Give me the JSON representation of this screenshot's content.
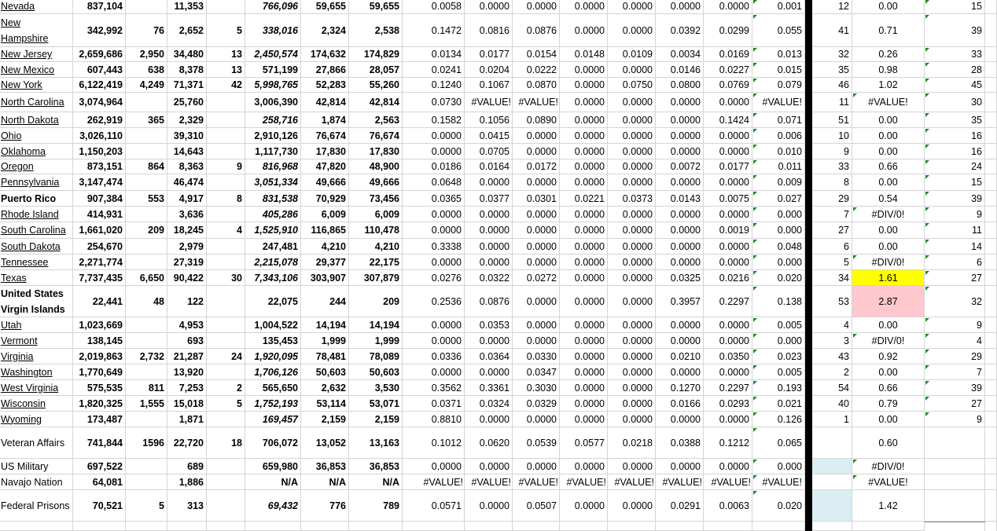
{
  "colors": {
    "highlight_yellow": "#ffff00",
    "highlight_pink": "#ffc7ce",
    "highlight_blue": "#daeef3",
    "error_indicator": "#1e8a1e"
  },
  "rows": [
    {
      "name": "Nevada",
      "style": "link",
      "f_italic": true,
      "nums": [
        "837,104",
        "",
        "11,353",
        "",
        "766,096",
        "59,655",
        "59,655"
      ],
      "ratios": [
        "0.0058",
        "0.0000",
        "0.0000",
        "0.0000",
        "0.0000",
        "0.0000",
        "0.0000",
        "0.001"
      ],
      "q": "12",
      "r": "0.00",
      "s": "15"
    },
    {
      "name": "New Hampshire",
      "style": "link",
      "f_italic": true,
      "nums": [
        "342,992",
        "76",
        "2,652",
        "5",
        "338,016",
        "2,324",
        "2,538"
      ],
      "ratios": [
        "0.1472",
        "0.0816",
        "0.0876",
        "0.0000",
        "0.0000",
        "0.0392",
        "0.0299",
        "0.055"
      ],
      "q": "41",
      "r": "0.71",
      "s": "39"
    },
    {
      "name": "New Jersey",
      "style": "link",
      "f_italic": true,
      "nums": [
        "2,659,686",
        "2,950",
        "34,480",
        "13",
        "2,450,574",
        "174,632",
        "174,829"
      ],
      "ratios": [
        "0.0134",
        "0.0177",
        "0.0154",
        "0.0148",
        "0.0109",
        "0.0034",
        "0.0169",
        "0.013"
      ],
      "q": "32",
      "r": "0.26",
      "s": "33"
    },
    {
      "name": "New Mexico",
      "style": "link",
      "f_italic": false,
      "nums": [
        "607,443",
        "638",
        "8,378",
        "13",
        "571,199",
        "27,866",
        "28,057"
      ],
      "ratios": [
        "0.0241",
        "0.0204",
        "0.0222",
        "0.0000",
        "0.0000",
        "0.0146",
        "0.0227",
        "0.015"
      ],
      "q": "35",
      "r": "0.98",
      "s": "28"
    },
    {
      "name": "New York",
      "style": "link",
      "f_italic": true,
      "nums": [
        "6,122,419",
        "4,249",
        "71,371",
        "42",
        "5,998,765",
        "52,283",
        "55,260"
      ],
      "ratios": [
        "0.1240",
        "0.1067",
        "0.0870",
        "0.0000",
        "0.0750",
        "0.0800",
        "0.0769",
        "0.079"
      ],
      "q": "46",
      "r": "1.02",
      "s": "45"
    },
    {
      "name": "North Carolina",
      "style": "link",
      "f_italic": false,
      "nums": [
        "3,074,964",
        "",
        "25,760",
        "",
        "3,006,390",
        "42,814",
        "42,814"
      ],
      "ratios": [
        "0.0730",
        "#VALUE!",
        "#VALUE!",
        "0.0000",
        "0.0000",
        "0.0000",
        "0.0000",
        "#VALUE!"
      ],
      "q": "11",
      "r": "#VALUE!",
      "s": "30",
      "r_flag": true
    },
    {
      "name": "North Dakota",
      "style": "link",
      "f_italic": true,
      "nums": [
        "262,919",
        "365",
        "2,329",
        "",
        "258,716",
        "1,874",
        "2,563"
      ],
      "ratios": [
        "0.1582",
        "0.1056",
        "0.0890",
        "0.0000",
        "0.0000",
        "0.0000",
        "0.1424",
        "0.071"
      ],
      "q": "51",
      "r": "0.00",
      "s": "35"
    },
    {
      "name": "Ohio",
      "style": "link",
      "f_italic": false,
      "nums": [
        "3,026,110",
        "",
        "39,310",
        "",
        "2,910,126",
        "76,674",
        "76,674"
      ],
      "ratios": [
        "0.0000",
        "0.0415",
        "0.0000",
        "0.0000",
        "0.0000",
        "0.0000",
        "0.0000",
        "0.006"
      ],
      "q": "10",
      "r": "0.00",
      "s": "16"
    },
    {
      "name": "Oklahoma",
      "style": "link",
      "f_italic": false,
      "nums": [
        "1,150,203",
        "",
        "14,643",
        "",
        "1,117,730",
        "17,830",
        "17,830"
      ],
      "ratios": [
        "0.0000",
        "0.0705",
        "0.0000",
        "0.0000",
        "0.0000",
        "0.0000",
        "0.0000",
        "0.010"
      ],
      "q": "9",
      "r": "0.00",
      "s": "16"
    },
    {
      "name": "Oregon",
      "style": "link",
      "f_italic": true,
      "nums": [
        "873,151",
        "864",
        "8,363",
        "9",
        "816,968",
        "47,820",
        "48,900"
      ],
      "ratios": [
        "0.0186",
        "0.0164",
        "0.0172",
        "0.0000",
        "0.0000",
        "0.0072",
        "0.0177",
        "0.011"
      ],
      "q": "33",
      "r": "0.66",
      "s": "24"
    },
    {
      "name": "Pennsylvania",
      "style": "link",
      "f_italic": true,
      "nums": [
        "3,147,474",
        "",
        "46,474",
        "",
        "3,051,334",
        "49,666",
        "49,666"
      ],
      "ratios": [
        "0.0648",
        "0.0000",
        "0.0000",
        "0.0000",
        "0.0000",
        "0.0000",
        "0.0000",
        "0.009"
      ],
      "q": "8",
      "r": "0.00",
      "s": "15"
    },
    {
      "name": "Puerto Rico",
      "style": "bold",
      "f_italic": true,
      "nums": [
        "907,384",
        "553",
        "4,917",
        "8",
        "831,538",
        "70,929",
        "73,456"
      ],
      "ratios": [
        "0.0365",
        "0.0377",
        "0.0301",
        "0.0221",
        "0.0373",
        "0.0143",
        "0.0075",
        "0.027"
      ],
      "q": "29",
      "r": "0.54",
      "s": "39"
    },
    {
      "name": "Rhode Island",
      "style": "link",
      "f_italic": true,
      "nums": [
        "414,931",
        "",
        "3,636",
        "",
        "405,286",
        "6,009",
        "6,009"
      ],
      "ratios": [
        "0.0000",
        "0.0000",
        "0.0000",
        "0.0000",
        "0.0000",
        "0.0000",
        "0.0000",
        "0.000"
      ],
      "q": "7",
      "r": "#DIV/0!",
      "s": "9",
      "r_flag": true
    },
    {
      "name": "South Carolina",
      "style": "link",
      "f_italic": true,
      "nums": [
        "1,661,020",
        "209",
        "18,245",
        "4",
        "1,525,910",
        "116,865",
        "110,478"
      ],
      "ratios": [
        "0.0000",
        "0.0000",
        "0.0000",
        "0.0000",
        "0.0000",
        "0.0000",
        "0.0019",
        "0.000"
      ],
      "q": "27",
      "r": "0.00",
      "s": "11"
    },
    {
      "name": "South Dakota",
      "style": "link",
      "f_italic": false,
      "nums": [
        "254,670",
        "",
        "2,979",
        "",
        "247,481",
        "4,210",
        "4,210"
      ],
      "ratios": [
        "0.3338",
        "0.0000",
        "0.0000",
        "0.0000",
        "0.0000",
        "0.0000",
        "0.0000",
        "0.048"
      ],
      "q": "6",
      "r": "0.00",
      "s": "14"
    },
    {
      "name": "Tennessee",
      "style": "link",
      "f_italic": true,
      "nums": [
        "2,271,774",
        "",
        "27,319",
        "",
        "2,215,078",
        "29,377",
        "22,175"
      ],
      "ratios": [
        "0.0000",
        "0.0000",
        "0.0000",
        "0.0000",
        "0.0000",
        "0.0000",
        "0.0000",
        "0.000"
      ],
      "q": "5",
      "r": "#DIV/0!",
      "s": "6",
      "r_flag": true
    },
    {
      "name": "Texas",
      "style": "link",
      "f_italic": true,
      "nums": [
        "7,737,435",
        "6,650",
        "90,422",
        "30",
        "7,343,106",
        "303,907",
        "307,879"
      ],
      "ratios": [
        "0.0276",
        "0.0322",
        "0.0272",
        "0.0000",
        "0.0000",
        "0.0325",
        "0.0216",
        "0.020"
      ],
      "q": "34",
      "r": "1.61",
      "s": "27",
      "r_fill": "#ffff00"
    },
    {
      "name": "United States Virgin Islands",
      "style": "bold",
      "f_italic": false,
      "nums": [
        "22,441",
        "48",
        "122",
        "",
        "22,075",
        "244",
        "209"
      ],
      "ratios": [
        "0.2536",
        "0.0876",
        "0.0000",
        "0.0000",
        "0.0000",
        "0.3957",
        "0.2297",
        "0.138"
      ],
      "q": "53",
      "r": "2.87",
      "s": "32",
      "r_fill": "#ffc7ce"
    },
    {
      "name": "Utah",
      "style": "link",
      "f_italic": false,
      "nums": [
        "1,023,669",
        "",
        "4,953",
        "",
        "1,004,522",
        "14,194",
        "14,194"
      ],
      "ratios": [
        "0.0000",
        "0.0353",
        "0.0000",
        "0.0000",
        "0.0000",
        "0.0000",
        "0.0000",
        "0.005"
      ],
      "q": "4",
      "r": "0.00",
      "s": "9"
    },
    {
      "name": "Vermont",
      "style": "link",
      "f_italic": false,
      "nums": [
        "138,145",
        "",
        "693",
        "",
        "135,453",
        "1,999",
        "1,999"
      ],
      "ratios": [
        "0.0000",
        "0.0000",
        "0.0000",
        "0.0000",
        "0.0000",
        "0.0000",
        "0.0000",
        "0.000"
      ],
      "q": "3",
      "r": "#DIV/0!",
      "s": "4",
      "r_flag": true
    },
    {
      "name": "Virginia",
      "style": "link",
      "f_italic": true,
      "nums": [
        "2,019,863",
        "2,732",
        "21,287",
        "24",
        "1,920,095",
        "78,481",
        "78,089"
      ],
      "ratios": [
        "0.0336",
        "0.0364",
        "0.0330",
        "0.0000",
        "0.0000",
        "0.0210",
        "0.0350",
        "0.023"
      ],
      "q": "43",
      "r": "0.92",
      "s": "29"
    },
    {
      "name": "Washington",
      "style": "link",
      "f_italic": true,
      "nums": [
        "1,770,649",
        "",
        "13,920",
        "",
        "1,706,126",
        "50,603",
        "50,603"
      ],
      "ratios": [
        "0.0000",
        "0.0000",
        "0.0347",
        "0.0000",
        "0.0000",
        "0.0000",
        "0.0000",
        "0.005"
      ],
      "q": "2",
      "r": "0.00",
      "s": "7"
    },
    {
      "name": "West Virginia",
      "style": "link",
      "f_italic": false,
      "nums": [
        "575,535",
        "811",
        "7,253",
        "2",
        "565,650",
        "2,632",
        "3,530"
      ],
      "ratios": [
        "0.3562",
        "0.3361",
        "0.3030",
        "0.0000",
        "0.0000",
        "0.1270",
        "0.2297",
        "0.193"
      ],
      "q": "54",
      "r": "0.66",
      "s": "39"
    },
    {
      "name": "Wisconsin",
      "style": "link",
      "f_italic": true,
      "nums": [
        "1,820,325",
        "1,555",
        "15,018",
        "5",
        "1,752,193",
        "53,114",
        "53,071"
      ],
      "ratios": [
        "0.0371",
        "0.0324",
        "0.0329",
        "0.0000",
        "0.0000",
        "0.0166",
        "0.0293",
        "0.021"
      ],
      "q": "40",
      "r": "0.79",
      "s": "27"
    },
    {
      "name": "Wyoming",
      "style": "link",
      "f_italic": true,
      "nums": [
        "173,487",
        "",
        "1,871",
        "",
        "169,457",
        "2,159",
        "2,159"
      ],
      "ratios": [
        "0.8810",
        "0.0000",
        "0.0000",
        "0.0000",
        "0.0000",
        "0.0000",
        "0.0000",
        "0.126"
      ],
      "q": "1",
      "r": "0.00",
      "s": "9"
    },
    {
      "name": "Veteran Affairs",
      "style": "plain",
      "f_italic": false,
      "nums": [
        "741,844",
        "1596",
        "22,720",
        "18",
        "706,072",
        "13,052",
        "13,163"
      ],
      "ratios": [
        "0.1012",
        "0.0620",
        "0.0539",
        "0.0577",
        "0.0218",
        "0.0388",
        "0.1212",
        "0.065"
      ],
      "q": "",
      "r": "0.60",
      "s": ""
    },
    {
      "name": "US Military",
      "style": "plain",
      "f_italic": false,
      "nums": [
        "697,522",
        "",
        "689",
        "",
        "659,980",
        "36,853",
        "36,853"
      ],
      "ratios": [
        "0.0000",
        "0.0000",
        "0.0000",
        "0.0000",
        "0.0000",
        "0.0000",
        "0.0000",
        "0.000"
      ],
      "q": "",
      "r": "#DIV/0!",
      "s": "",
      "q_fill": "#daeef3",
      "r_flag": true
    },
    {
      "name": "Navajo Nation",
      "style": "plain",
      "f_italic": false,
      "nums": [
        "64,081",
        "",
        "1,886",
        "",
        "N/A",
        "N/A",
        "N/A"
      ],
      "ratios": [
        "#VALUE!",
        "#VALUE!",
        "#VALUE!",
        "#VALUE!",
        "#VALUE!",
        "#VALUE!",
        "#VALUE!",
        "#VALUE!"
      ],
      "q": "",
      "r": "#VALUE!",
      "s": "",
      "r_flag": true
    },
    {
      "name": "Federal Prisons",
      "style": "plain",
      "f_italic": true,
      "nums": [
        "70,521",
        "5",
        "313",
        "",
        "69,432",
        "776",
        "789"
      ],
      "ratios": [
        "0.0571",
        "0.0000",
        "0.0507",
        "0.0000",
        "0.0000",
        "0.0291",
        "0.0063",
        "0.020"
      ],
      "q": "",
      "r": "1.42",
      "s": "",
      "q_fill": "#daeef3"
    }
  ]
}
